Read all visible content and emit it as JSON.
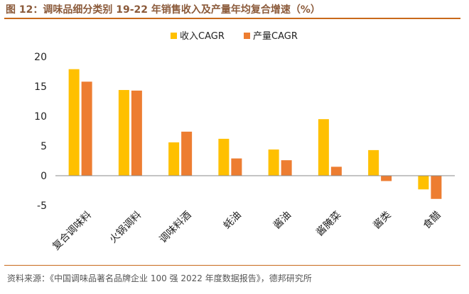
{
  "header": {
    "title": "图 12：调味品细分类别 19-22 年销售收入及产量年均复合增速（%）"
  },
  "footer": {
    "source": "资料来源：《中国调味品著名品牌企业 100 强 2022 年度数据报告》，德邦研究所"
  },
  "colors": {
    "revenue": "#ffc000",
    "production": "#ed7d31",
    "accent": "#c8691a"
  },
  "chart_data": {
    "type": "bar",
    "title": "",
    "xlabel": "",
    "ylabel": "",
    "ylim": [
      -5,
      20
    ],
    "yticks": [
      20,
      15,
      10,
      5,
      0,
      -5
    ],
    "legend_position": "top",
    "grid": false,
    "categories": [
      "复合调味料",
      "火锅调料",
      "调味料酒",
      "蚝油",
      "酱油",
      "酱腌菜",
      "酱类",
      "食醋"
    ],
    "series": [
      {
        "name": "收入CAGR",
        "values": [
          17.9,
          14.4,
          5.6,
          6.2,
          4.4,
          9.5,
          4.3,
          -2.3
        ]
      },
      {
        "name": "产量CAGR",
        "values": [
          15.8,
          14.3,
          7.4,
          2.9,
          2.6,
          1.5,
          -0.9,
          -3.9
        ]
      }
    ]
  }
}
